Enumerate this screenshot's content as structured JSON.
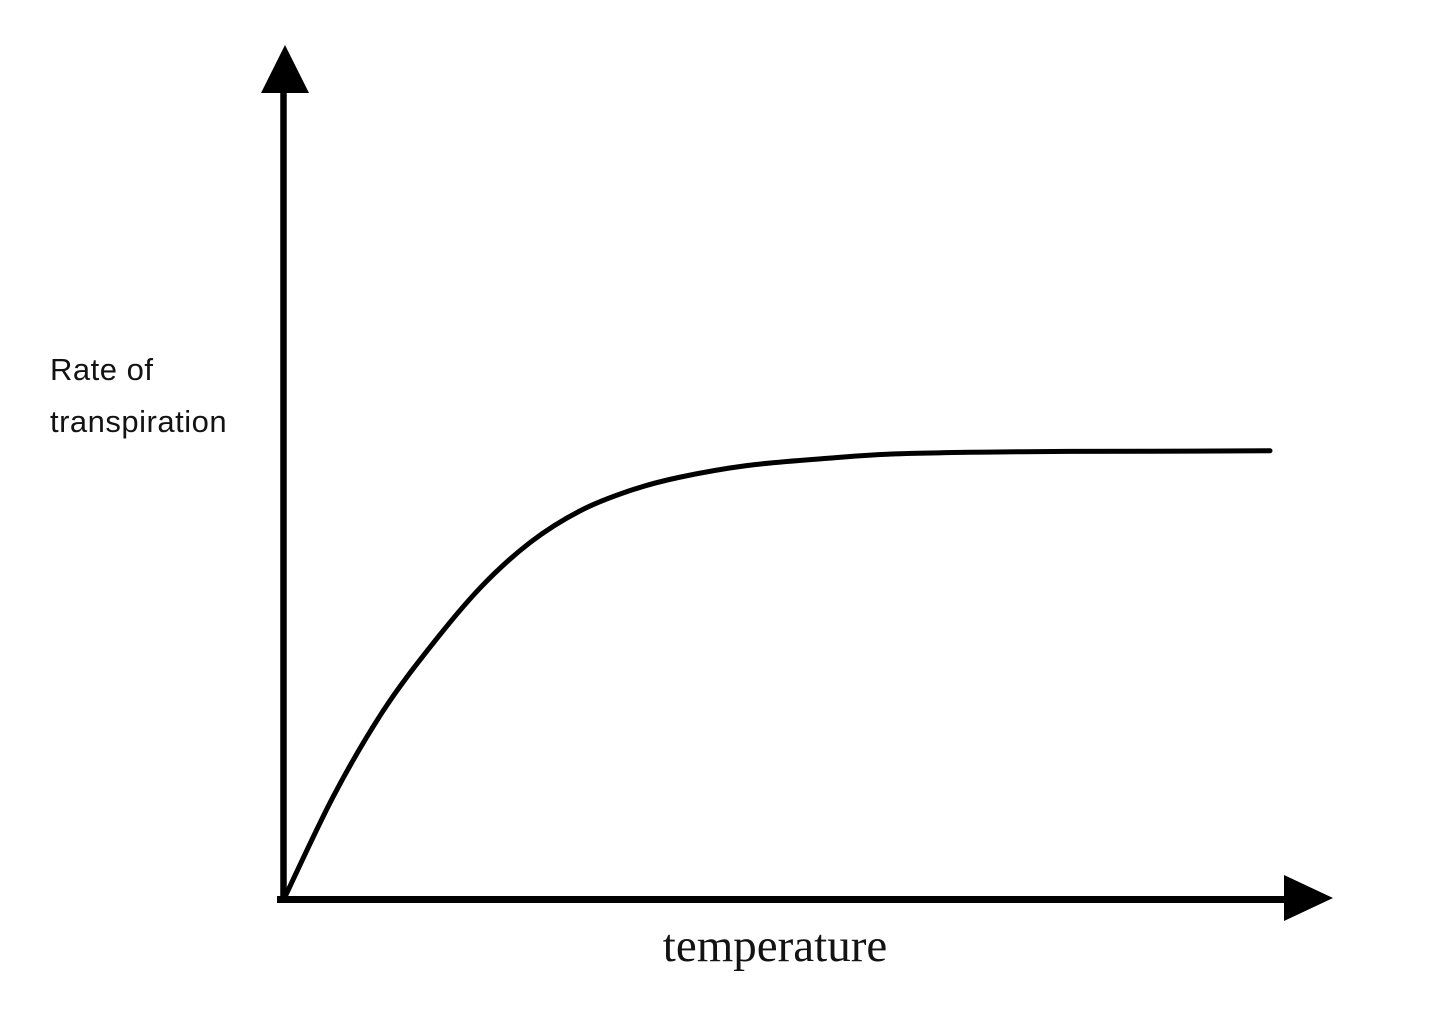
{
  "chart_data": {
    "type": "line",
    "title": "",
    "xlabel": "temperature",
    "ylabel": "Rate of transpiration",
    "ylabel_lines": [
      "Rate of",
      "transpiration"
    ],
    "x_axis": {
      "has_arrow": true,
      "tick_labels": []
    },
    "y_axis": {
      "has_arrow": true,
      "tick_labels": []
    },
    "grid": false,
    "legend": false,
    "background": "#ffffff",
    "axis_color": "#000000",
    "line_color": "#000000",
    "series": [
      {
        "name": "rate-of-transpiration-vs-temperature",
        "description": "steep rise from origin that levels off to a plateau",
        "x_normalized": [
          0,
          0.05,
          0.1,
          0.15,
          0.2,
          0.25,
          0.3,
          0.35,
          0.4,
          0.47,
          0.55,
          0.62,
          0.75,
          0.88,
          1.0
        ],
        "y_normalized": [
          0,
          0.23,
          0.42,
          0.57,
          0.7,
          0.8,
          0.87,
          0.915,
          0.945,
          0.972,
          0.988,
          0.998,
          1.003,
          1.004,
          1.005
        ]
      }
    ]
  }
}
